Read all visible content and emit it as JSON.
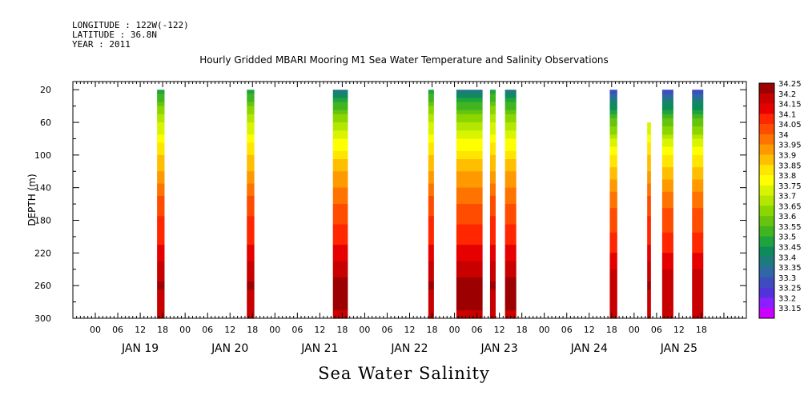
{
  "header": {
    "longitude": "LONGITUDE : 122W(-122)",
    "latitude": "LATITUDE : 36.8N",
    "year": "YEAR : 2011"
  },
  "chart_data": {
    "type": "heatmap",
    "title": "Hourly Gridded MBARI Mooring M1 Sea Water Temperature and Salinity Observations",
    "bottom_title": "Sea Water Salinity",
    "ylabel": "DEPTH (m)",
    "ylim": [
      300,
      10
    ],
    "y_ticks": [
      20,
      60,
      100,
      140,
      180,
      220,
      260,
      300
    ],
    "x_range_hours": [
      -18,
      162
    ],
    "x_tick_labels": [
      "00",
      "06",
      "12",
      "18",
      "00",
      "06",
      "12",
      "18",
      "00",
      "06",
      "12",
      "18",
      "00",
      "06",
      "12",
      "18",
      "00",
      "06",
      "12",
      "18",
      "00",
      "06",
      "12",
      "18",
      "00",
      "06",
      "12",
      "18"
    ],
    "day_labels": [
      "JAN 19",
      "JAN 20",
      "JAN 21",
      "JAN 22",
      "JAN 23",
      "JAN 24",
      "JAN 25"
    ],
    "colorbar": {
      "levels": [
        "34.25",
        "34.2",
        "34.15",
        "34.1",
        "34.05",
        "34",
        "33.95",
        "33.9",
        "33.85",
        "33.8",
        "33.75",
        "33.7",
        "33.65",
        "33.6",
        "33.55",
        "33.5",
        "33.45",
        "33.4",
        "33.35",
        "33.3",
        "33.25",
        "33.2",
        "33.15"
      ],
      "colors": [
        "#9c0000",
        "#c80000",
        "#e60000",
        "#ff2600",
        "#ff4c00",
        "#ff7300",
        "#ff9900",
        "#ffbf00",
        "#ffe600",
        "#ffff00",
        "#d9f400",
        "#b3e600",
        "#8cd600",
        "#66c40f",
        "#40b51f",
        "#1fa33f",
        "#0f8a5c",
        "#1f7a80",
        "#2e66a6",
        "#3d4cbf",
        "#5233d9",
        "#8c1fff",
        "#cc00ff"
      ]
    },
    "profile_breakpoints": [
      20,
      40,
      60,
      80,
      100,
      120,
      140,
      160,
      180,
      200,
      220,
      240,
      260,
      280,
      300
    ],
    "profile_levels": {
      "typical": [
        33.5,
        33.62,
        33.72,
        33.8,
        33.87,
        33.93,
        34.0,
        34.05,
        34.08,
        34.1,
        34.15,
        34.2,
        34.23,
        34.21,
        34.2
      ],
      "fresh": [
        33.38,
        33.55,
        33.68,
        33.78,
        33.85,
        33.92,
        33.98,
        34.03,
        34.07,
        34.1,
        34.14,
        34.2,
        34.24,
        34.23,
        34.22
      ],
      "violet": [
        33.25,
        33.45,
        33.6,
        33.72,
        33.82,
        33.9,
        33.96,
        34.02,
        34.05,
        34.08,
        34.13,
        34.18,
        34.22,
        34.2,
        34.19
      ]
    },
    "segments": [
      {
        "start": 4.5,
        "end": 6.5,
        "top": 20,
        "profile": "typical"
      },
      {
        "start": 28.5,
        "end": 30.5,
        "top": 20,
        "profile": "typical"
      },
      {
        "start": 51.5,
        "end": 55.5,
        "top": 20,
        "profile": "fresh"
      },
      {
        "start": 77.0,
        "end": 78.5,
        "top": 20,
        "profile": "typical"
      },
      {
        "start": 84.5,
        "end": 91.5,
        "top": 20,
        "profile": "fresh"
      },
      {
        "start": 93.5,
        "end": 95.0,
        "top": 20,
        "profile": "typical"
      },
      {
        "start": 97.5,
        "end": 100.5,
        "top": 20,
        "profile": "fresh"
      },
      {
        "start": 125.5,
        "end": 127.5,
        "top": 20,
        "profile": "violet"
      },
      {
        "start": 135.5,
        "end": 136.5,
        "top": 60,
        "profile": "typical"
      },
      {
        "start": 139.5,
        "end": 142.5,
        "top": 20,
        "profile": "violet"
      },
      {
        "start": 147.5,
        "end": 150.5,
        "top": 20,
        "profile": "violet"
      }
    ]
  }
}
